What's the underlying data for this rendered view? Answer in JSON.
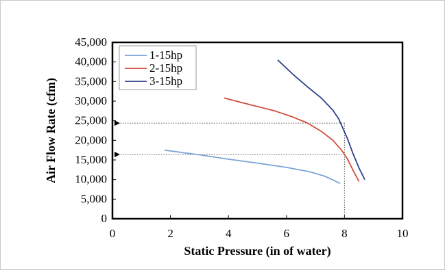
{
  "chart_data": {
    "type": "line",
    "title": "",
    "xlabel": "Static Pressure (in of water)",
    "ylabel": "Air Flow Rate (cfm)",
    "xlim": [
      0,
      10
    ],
    "ylim": [
      0,
      45000
    ],
    "xticks": [
      0,
      2,
      4,
      6,
      8,
      10
    ],
    "yticks": [
      0,
      5000,
      10000,
      15000,
      20000,
      25000,
      30000,
      35000,
      40000,
      45000
    ],
    "xtick_labels": [
      "0",
      "2",
      "4",
      "6",
      "8",
      "10"
    ],
    "ytick_labels": [
      "0",
      "5,000",
      "10,000",
      "15,000",
      "20,000",
      "25,000",
      "30,000",
      "35,000",
      "40,000",
      "45,000"
    ],
    "grid": false,
    "legend_position": "top-left",
    "series": [
      {
        "name": "1-15hp",
        "color": "#7ba3d6",
        "x": [
          1.8,
          3.0,
          4.0,
          5.0,
          6.0,
          6.8,
          7.3,
          7.6,
          7.85
        ],
        "y": [
          17500,
          16300,
          15200,
          14200,
          13100,
          12000,
          10900,
          9900,
          9000
        ]
      },
      {
        "name": "2-15hp",
        "color": "#d04a3c",
        "x": [
          3.85,
          4.8,
          5.6,
          6.2,
          6.7,
          7.2,
          7.6,
          7.9,
          8.1,
          8.3,
          8.5
        ],
        "y": [
          30800,
          29000,
          27500,
          26000,
          24500,
          22300,
          20000,
          17500,
          15300,
          12300,
          9500
        ]
      },
      {
        "name": "3-15hp",
        "color": "#2e3f8a",
        "x": [
          5.7,
          6.2,
          6.7,
          7.2,
          7.6,
          7.8,
          7.95,
          8.1,
          8.3,
          8.5,
          8.7
        ],
        "y": [
          40500,
          37000,
          33800,
          30800,
          27700,
          25500,
          23000,
          20500,
          16500,
          13000,
          10000
        ]
      }
    ],
    "reference_lines": {
      "color": "#555555",
      "x_value": 8,
      "y_values": [
        24400,
        16400
      ]
    }
  }
}
